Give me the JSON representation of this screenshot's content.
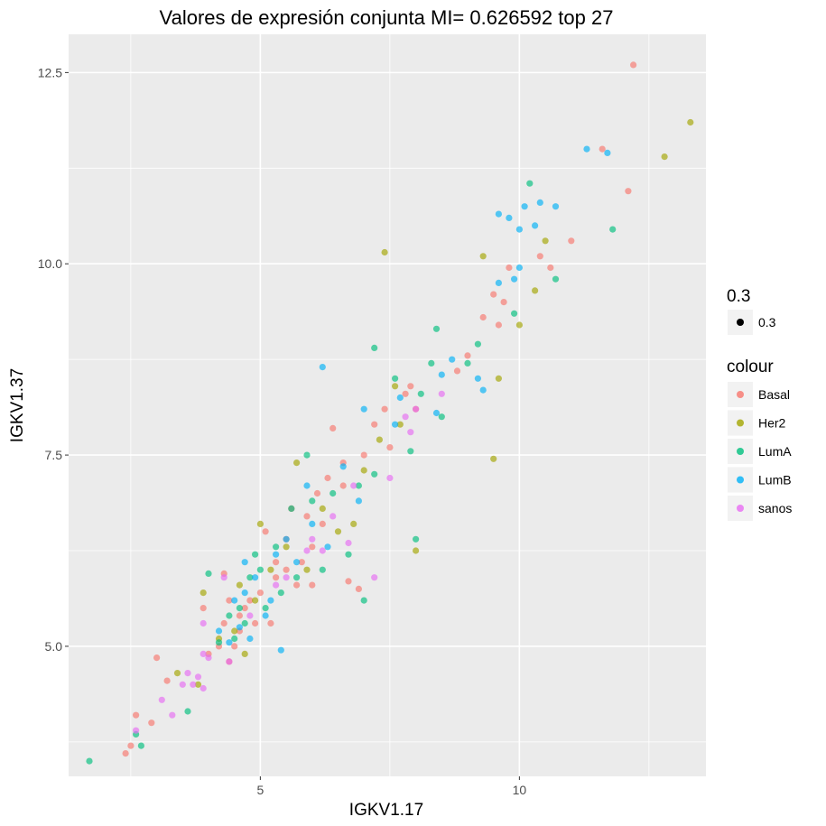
{
  "chart_data": {
    "type": "scatter",
    "title": "Valores de expresión conjunta MI= 0.626592 top 27",
    "xlabel": "IGKV1.17",
    "ylabel": "IGKV1.37",
    "xlim": [
      1.3,
      13.6
    ],
    "ylim": [
      3.3,
      13.0
    ],
    "x_ticks": [
      5,
      10
    ],
    "x_tick_labels": [
      "5",
      "10"
    ],
    "y_ticks": [
      5.0,
      7.5,
      10.0,
      12.5
    ],
    "y_tick_labels": [
      "5.0",
      "7.5",
      "10.0",
      "12.5"
    ],
    "grid": true,
    "alpha": 0.3,
    "legend_position": "right",
    "legend": {
      "alpha_title": "0.3",
      "alpha_label": "0.3",
      "colour_title": "colour",
      "entries": [
        "Basal",
        "Her2",
        "LumA",
        "LumB",
        "sanos"
      ]
    },
    "series": [
      {
        "name": "Basal",
        "color": "#F8766D",
        "points": [
          [
            12.2,
            12.6
          ],
          [
            11.6,
            11.5
          ],
          [
            12.1,
            10.95
          ],
          [
            11.0,
            10.3
          ],
          [
            10.4,
            10.1
          ],
          [
            10.6,
            9.95
          ],
          [
            9.8,
            9.95
          ],
          [
            9.5,
            9.6
          ],
          [
            9.7,
            9.5
          ],
          [
            9.3,
            9.3
          ],
          [
            9.6,
            9.2
          ],
          [
            9.0,
            8.8
          ],
          [
            8.8,
            8.6
          ],
          [
            7.9,
            8.4
          ],
          [
            8.0,
            8.1
          ],
          [
            7.8,
            8.3
          ],
          [
            7.4,
            8.1
          ],
          [
            7.2,
            7.9
          ],
          [
            7.5,
            7.6
          ],
          [
            7.0,
            7.5
          ],
          [
            6.6,
            7.4
          ],
          [
            6.3,
            7.2
          ],
          [
            6.6,
            7.1
          ],
          [
            6.2,
            6.6
          ],
          [
            5.9,
            6.7
          ],
          [
            6.0,
            6.3
          ],
          [
            5.5,
            6.4
          ],
          [
            5.1,
            6.5
          ],
          [
            5.3,
            6.1
          ],
          [
            5.5,
            6.0
          ],
          [
            5.7,
            5.8
          ],
          [
            5.3,
            5.9
          ],
          [
            5.0,
            5.7
          ],
          [
            4.8,
            5.6
          ],
          [
            4.7,
            5.5
          ],
          [
            4.6,
            5.4
          ],
          [
            4.9,
            5.3
          ],
          [
            4.6,
            5.2
          ],
          [
            4.4,
            5.6
          ],
          [
            4.3,
            5.3
          ],
          [
            4.5,
            5.0
          ],
          [
            4.2,
            5.0
          ],
          [
            4.0,
            4.9
          ],
          [
            4.4,
            4.8
          ],
          [
            3.9,
            5.5
          ],
          [
            3.0,
            4.85
          ],
          [
            3.2,
            4.55
          ],
          [
            2.9,
            4.0
          ],
          [
            2.6,
            4.1
          ],
          [
            2.5,
            3.7
          ],
          [
            2.4,
            3.6
          ],
          [
            6.9,
            5.75
          ],
          [
            6.4,
            7.85
          ],
          [
            4.3,
            5.95
          ],
          [
            5.2,
            5.3
          ],
          [
            6.7,
            5.85
          ],
          [
            6.0,
            5.8
          ],
          [
            5.8,
            6.1
          ],
          [
            6.1,
            7.0
          ],
          [
            5.6,
            6.8
          ]
        ]
      },
      {
        "name": "Her2",
        "color": "#A3A500",
        "points": [
          [
            13.3,
            11.85
          ],
          [
            12.8,
            11.4
          ],
          [
            10.5,
            10.3
          ],
          [
            10.3,
            9.65
          ],
          [
            10.0,
            9.2
          ],
          [
            9.3,
            10.1
          ],
          [
            7.4,
            10.15
          ],
          [
            9.6,
            8.5
          ],
          [
            9.5,
            7.45
          ],
          [
            8.0,
            6.25
          ],
          [
            7.6,
            8.4
          ],
          [
            7.3,
            7.7
          ],
          [
            7.0,
            7.3
          ],
          [
            6.8,
            6.6
          ],
          [
            6.5,
            6.5
          ],
          [
            5.7,
            7.4
          ],
          [
            5.5,
            6.3
          ],
          [
            5.0,
            6.6
          ],
          [
            5.2,
            6.0
          ],
          [
            4.6,
            5.8
          ],
          [
            3.9,
            5.7
          ],
          [
            4.9,
            5.6
          ],
          [
            4.5,
            5.2
          ],
          [
            4.2,
            5.1
          ],
          [
            3.4,
            4.65
          ],
          [
            3.8,
            4.5
          ],
          [
            4.7,
            4.9
          ],
          [
            5.9,
            6.0
          ],
          [
            6.2,
            6.8
          ],
          [
            7.7,
            7.9
          ]
        ]
      },
      {
        "name": "LumA",
        "color": "#00BF7D",
        "points": [
          [
            10.2,
            11.05
          ],
          [
            11.8,
            10.45
          ],
          [
            10.7,
            9.8
          ],
          [
            9.9,
            9.35
          ],
          [
            9.2,
            8.95
          ],
          [
            8.4,
            9.15
          ],
          [
            7.2,
            8.9
          ],
          [
            7.6,
            8.5
          ],
          [
            8.1,
            8.3
          ],
          [
            8.5,
            8.0
          ],
          [
            9.0,
            8.7
          ],
          [
            8.3,
            8.7
          ],
          [
            7.9,
            7.55
          ],
          [
            7.2,
            7.25
          ],
          [
            6.9,
            7.1
          ],
          [
            6.4,
            7.0
          ],
          [
            6.0,
            6.9
          ],
          [
            5.6,
            6.8
          ],
          [
            5.3,
            6.3
          ],
          [
            4.9,
            6.2
          ],
          [
            5.0,
            6.0
          ],
          [
            4.8,
            5.9
          ],
          [
            4.6,
            5.5
          ],
          [
            4.7,
            5.3
          ],
          [
            4.5,
            5.1
          ],
          [
            4.4,
            5.4
          ],
          [
            5.1,
            5.5
          ],
          [
            4.0,
            5.95
          ],
          [
            3.6,
            4.15
          ],
          [
            2.7,
            3.7
          ],
          [
            1.7,
            3.5
          ],
          [
            2.6,
            3.85
          ],
          [
            4.2,
            5.05
          ],
          [
            5.4,
            5.7
          ],
          [
            6.7,
            6.2
          ],
          [
            7.0,
            5.6
          ],
          [
            8.0,
            6.4
          ],
          [
            5.9,
            7.5
          ],
          [
            6.2,
            6.0
          ],
          [
            5.7,
            5.9
          ]
        ]
      },
      {
        "name": "LumB",
        "color": "#00B0F6",
        "points": [
          [
            11.3,
            11.5
          ],
          [
            11.7,
            11.45
          ],
          [
            10.4,
            10.8
          ],
          [
            10.7,
            10.75
          ],
          [
            10.1,
            10.75
          ],
          [
            9.8,
            10.6
          ],
          [
            10.0,
            10.45
          ],
          [
            10.3,
            10.5
          ],
          [
            9.6,
            10.65
          ],
          [
            10.0,
            9.95
          ],
          [
            9.6,
            9.75
          ],
          [
            9.9,
            9.8
          ],
          [
            8.7,
            8.75
          ],
          [
            8.5,
            8.55
          ],
          [
            9.2,
            8.5
          ],
          [
            9.3,
            8.35
          ],
          [
            8.4,
            8.05
          ],
          [
            7.7,
            8.25
          ],
          [
            7.0,
            8.1
          ],
          [
            6.2,
            8.65
          ],
          [
            6.6,
            7.35
          ],
          [
            5.9,
            7.1
          ],
          [
            5.5,
            6.4
          ],
          [
            5.7,
            6.1
          ],
          [
            5.1,
            5.4
          ],
          [
            4.9,
            5.9
          ],
          [
            4.7,
            5.7
          ],
          [
            4.5,
            5.6
          ],
          [
            4.6,
            5.25
          ],
          [
            4.4,
            5.05
          ],
          [
            4.8,
            5.1
          ],
          [
            5.4,
            4.95
          ],
          [
            4.2,
            5.2
          ],
          [
            5.2,
            5.6
          ],
          [
            4.7,
            6.1
          ],
          [
            5.3,
            6.2
          ],
          [
            6.0,
            6.6
          ],
          [
            6.9,
            6.9
          ],
          [
            6.3,
            6.3
          ],
          [
            7.6,
            7.9
          ]
        ]
      },
      {
        "name": "sanos",
        "color": "#E76BF3",
        "points": [
          [
            8.0,
            8.1
          ],
          [
            7.9,
            7.8
          ],
          [
            8.5,
            8.3
          ],
          [
            6.4,
            6.7
          ],
          [
            6.2,
            6.25
          ],
          [
            6.7,
            6.35
          ],
          [
            7.2,
            5.9
          ],
          [
            5.9,
            6.25
          ],
          [
            4.3,
            5.9
          ],
          [
            3.9,
            5.3
          ],
          [
            3.9,
            4.9
          ],
          [
            4.0,
            4.85
          ],
          [
            3.6,
            4.65
          ],
          [
            3.5,
            4.5
          ],
          [
            3.7,
            4.5
          ],
          [
            3.9,
            4.45
          ],
          [
            3.8,
            4.6
          ],
          [
            3.1,
            4.3
          ],
          [
            3.3,
            4.1
          ],
          [
            2.6,
            3.9
          ],
          [
            4.4,
            4.8
          ],
          [
            5.5,
            5.9
          ],
          [
            6.8,
            7.1
          ],
          [
            7.5,
            7.2
          ],
          [
            4.8,
            5.4
          ],
          [
            5.3,
            5.8
          ],
          [
            6.0,
            6.4
          ],
          [
            7.8,
            8.0
          ]
        ]
      }
    ]
  }
}
